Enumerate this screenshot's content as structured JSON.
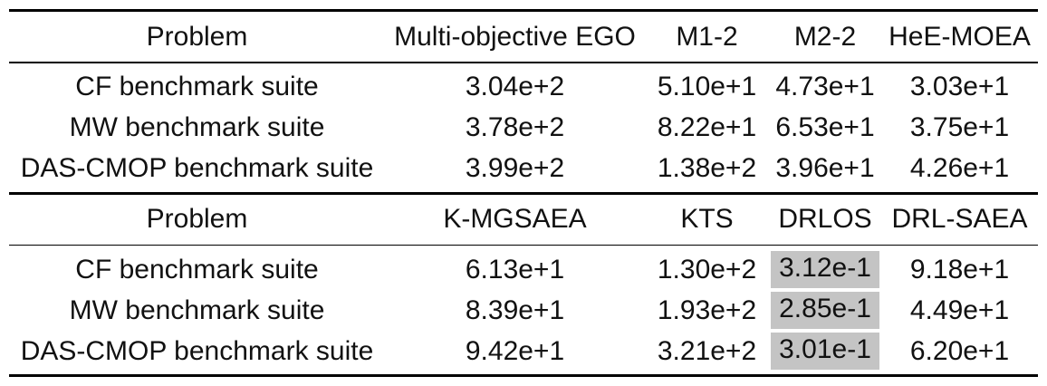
{
  "page": {
    "background_color": "#ffffff",
    "text_color": "#111111",
    "rule_color": "#000000",
    "highlight_color": "#c4c4c4"
  },
  "table": {
    "description": "Benchmark results table with two stacked sections comparing algorithms on benchmark suites",
    "sections": [
      {
        "header": [
          "Problem",
          "Multi-objective EGO",
          "M1-2",
          "M2-2",
          "HeE-MOEA"
        ],
        "rows": [
          [
            "CF benchmark suite",
            "3.04e+2",
            "5.10e+1",
            "4.73e+1",
            "3.03e+1"
          ],
          [
            "MW benchmark suite",
            "3.78e+2",
            "8.22e+1",
            "6.53e+1",
            "3.75e+1"
          ],
          [
            "DAS-CMOP benchmark suite",
            "3.99e+2",
            "1.38e+2",
            "3.96e+1",
            "4.26e+1"
          ]
        ],
        "highlighted_cells": []
      },
      {
        "header": [
          "Problem",
          "K-MGSAEA",
          "KTS",
          "DRLOS",
          "DRL-SAEA"
        ],
        "rows": [
          [
            "CF benchmark suite",
            "6.13e+1",
            "1.30e+2",
            "3.12e-1",
            "9.18e+1"
          ],
          [
            "MW benchmark suite",
            "8.39e+1",
            "1.93e+2",
            "2.85e-1",
            "4.49e+1"
          ],
          [
            "DAS-CMOP benchmark suite",
            "9.42e+1",
            "3.21e+2",
            "3.01e-1",
            "6.20e+1"
          ]
        ],
        "highlighted_cells": [
          [
            0,
            3
          ],
          [
            1,
            3
          ],
          [
            2,
            3
          ]
        ],
        "highlight_column": "DRLOS"
      }
    ]
  }
}
